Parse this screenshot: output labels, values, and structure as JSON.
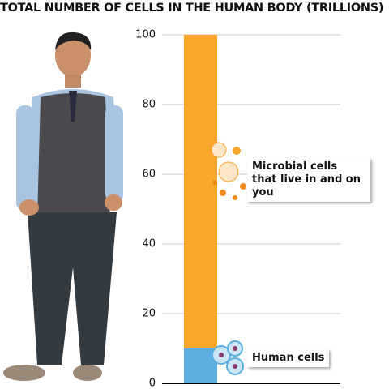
{
  "chart_data": {
    "type": "stacked-bar",
    "title": "TOTAL NUMBER OF CELLS IN THE HUMAN BODY (TRILLIONS)",
    "categories": [
      null
    ],
    "series": [
      {
        "name": "Human cells",
        "color": "#5aaee0",
        "values": [
          10
        ]
      },
      {
        "name": "Microbial cells that live in and on you",
        "color": "#f9a62a",
        "values": [
          90
        ]
      }
    ],
    "ylim": [
      0,
      100
    ],
    "yticks": [
      0,
      20,
      40,
      60,
      80,
      100
    ],
    "grid": true
  }
}
